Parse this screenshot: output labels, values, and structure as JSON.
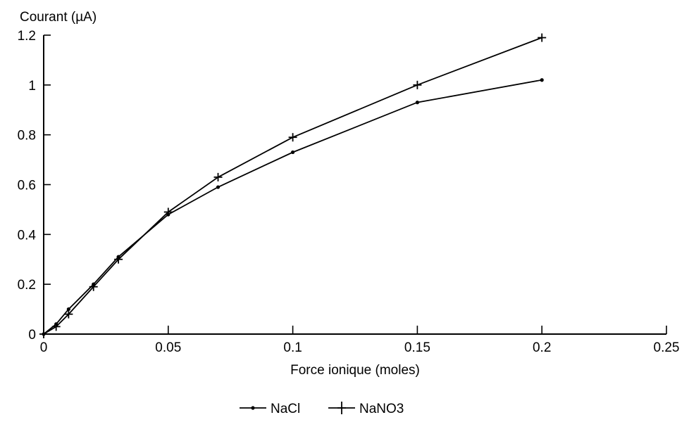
{
  "chart_data": {
    "type": "line",
    "ylabel": "Courant (µA)",
    "xlabel": "Force ionique (moles)",
    "xlim": [
      0,
      0.25
    ],
    "ylim": [
      0,
      1.2
    ],
    "xticks": [
      0,
      0.05,
      0.1,
      0.15,
      0.2,
      0.25
    ],
    "xtick_labels": [
      "0",
      "0.05",
      "0.1",
      "0.15",
      "0.2",
      "0.25"
    ],
    "yticks": [
      0,
      0.2,
      0.4,
      0.6,
      0.8,
      1,
      1.2
    ],
    "ytick_labels": [
      "0",
      "0.2",
      "0.4",
      "0.6",
      "0.8",
      "1",
      "1.2"
    ],
    "grid": false,
    "legend_position": "bottom",
    "series": [
      {
        "name": "NaCl",
        "marker": "dot",
        "color": "#000000",
        "x": [
          0,
          0.005,
          0.01,
          0.02,
          0.03,
          0.05,
          0.07,
          0.1,
          0.15,
          0.2
        ],
        "y": [
          0,
          0.04,
          0.1,
          0.2,
          0.31,
          0.48,
          0.59,
          0.73,
          0.93,
          1.02
        ]
      },
      {
        "name": "NaNO3",
        "marker": "plus",
        "color": "#000000",
        "x": [
          0,
          0.005,
          0.01,
          0.02,
          0.03,
          0.05,
          0.07,
          0.1,
          0.15,
          0.2
        ],
        "y": [
          0,
          0.03,
          0.08,
          0.19,
          0.3,
          0.49,
          0.63,
          0.79,
          1.0,
          1.19
        ]
      }
    ]
  }
}
